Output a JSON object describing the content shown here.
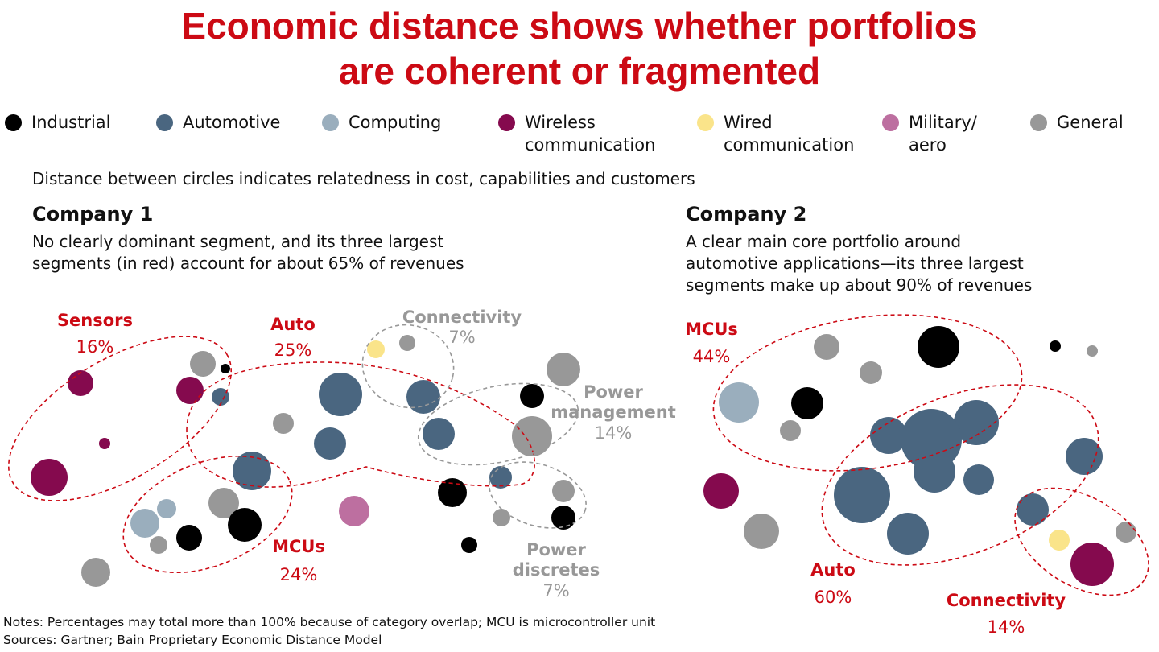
{
  "title_lines": [
    "Economic distance shows whether portfolios",
    "are coherent or fragmented"
  ],
  "legend": [
    {
      "label": "Industrial",
      "color": "#000000"
    },
    {
      "label": "Automotive",
      "color": "#4a6680"
    },
    {
      "label": "Computing",
      "color": "#9aaebd"
    },
    {
      "label": "Wireless\ncommunication",
      "color": "#850a4e"
    },
    {
      "label": "Wired\ncommunication",
      "color": "#fae48a"
    },
    {
      "label": "Military/\naero",
      "color": "#bd6fa0"
    },
    {
      "label": "General",
      "color": "#989898"
    }
  ],
  "subtitle": "Distance between circles indicates relatedness in cost, capabilities and customers",
  "company1": {
    "name": "Company 1",
    "description": [
      "No clearly dominant segment, and its three largest",
      "segments (in red) account for about 65% of revenues"
    ],
    "clusters": [
      {
        "name": "Sensors",
        "share": "16%",
        "style": "red"
      },
      {
        "name": "Auto",
        "share": "25%",
        "style": "red"
      },
      {
        "name": "MCUs",
        "share": "24%",
        "style": "red"
      },
      {
        "name": "Connectivity",
        "share": "7%",
        "style": "gray"
      },
      {
        "name": "Power\nmanagement",
        "share": "14%",
        "style": "gray"
      },
      {
        "name": "Power\ndiscretes",
        "share": "7%",
        "style": "gray"
      }
    ]
  },
  "company2": {
    "name": "Company 2",
    "description": [
      "A clear main core portfolio around",
      "automotive applications—its three largest",
      "segments make up about 90% of revenues"
    ],
    "clusters": [
      {
        "name": "MCUs",
        "share": "44%",
        "style": "red"
      },
      {
        "name": "Auto",
        "share": "60%",
        "style": "red"
      },
      {
        "name": "Connectivity",
        "share": "14%",
        "style": "red"
      }
    ]
  },
  "colors": {
    "red": "#cc0a14",
    "gray": "#989898"
  },
  "notes": "Notes: Percentages may total more than 100% because of category overlap; MCU is microcontroller unit",
  "sources": "Sources: Gartner; Bain Proprietary Economic Distance Model"
}
